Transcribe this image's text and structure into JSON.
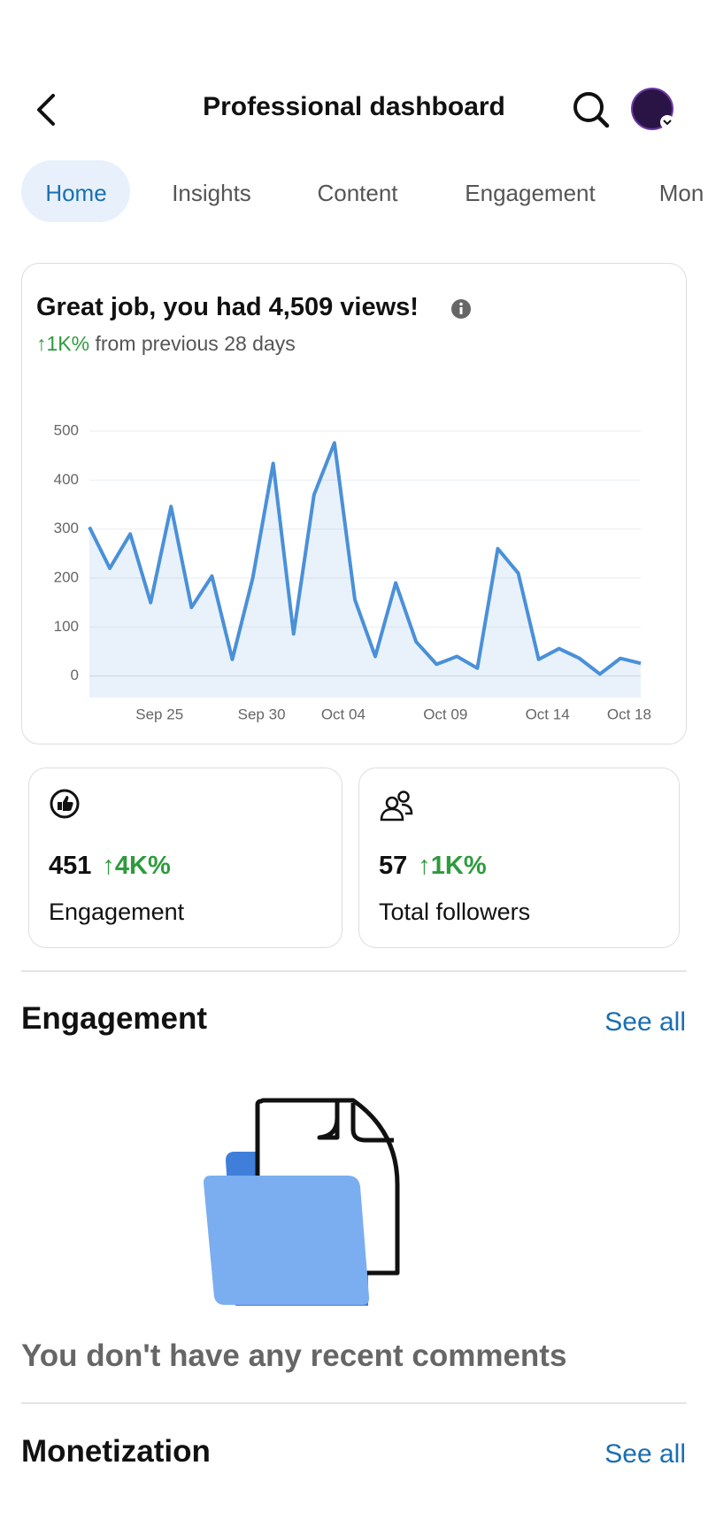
{
  "header": {
    "title": "Professional dashboard"
  },
  "tabs": [
    "Home",
    "Insights",
    "Content",
    "Engagement",
    "Mon"
  ],
  "summary": {
    "headline": "Great job, you had 4,509 views!",
    "change": "↑1K%",
    "change_text": "from previous 28 days"
  },
  "chart_data": {
    "type": "line",
    "categories": [
      null,
      null,
      null,
      "Sep 25",
      null,
      null,
      null,
      null,
      "Sep 30",
      null,
      null,
      null,
      "Oct 04",
      null,
      null,
      null,
      null,
      "Oct 09",
      null,
      null,
      null,
      null,
      "Oct 14",
      null,
      null,
      null,
      "Oct 18",
      null
    ],
    "series": [
      {
        "color": "#4a90d9",
        "values": [
          304,
          220,
          290,
          150,
          346,
          140,
          204,
          34,
          200,
          434,
          86,
          370,
          476,
          156,
          40,
          190,
          70,
          24,
          40,
          16,
          260,
          210,
          34,
          56,
          36,
          4,
          36,
          26
        ]
      }
    ],
    "ylim": [
      -44,
      500
    ],
    "yticks": [
      0,
      100,
      200,
      300,
      400,
      500
    ],
    "grid": true
  },
  "stats": [
    {
      "value": 451,
      "change": "↑4K%",
      "label": "Engagement"
    },
    {
      "value": 57,
      "change": "↑1K%",
      "label": "Total followers"
    }
  ],
  "sections": [
    {
      "title": "Engagement",
      "link": "See all",
      "empty_text": "You don't have any recent comments"
    },
    {
      "title": "Monetization",
      "link": "See all"
    }
  ]
}
